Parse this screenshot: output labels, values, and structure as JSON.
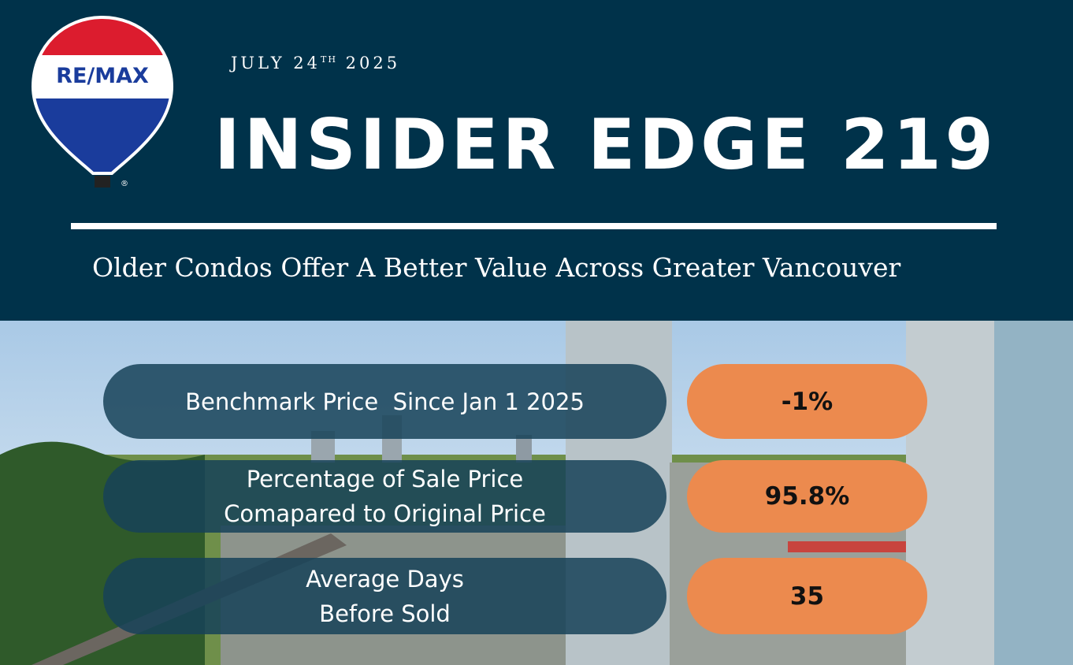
{
  "logo": {
    "text": "RE/MAX",
    "mark": "®"
  },
  "header": {
    "date": {
      "month_day": "JULY 24",
      "suffix": "TH",
      "year": "2025"
    },
    "title": "INSIDER EDGE 219",
    "subtitle": "Older Condos Offer A Better Value Across Greater Vancouver"
  },
  "stats": [
    {
      "label": [
        "Benchmark Price  Since Jan 1 2025"
      ],
      "value": "-1%"
    },
    {
      "label": [
        "Percentage of Sale Price",
        "Comapared to Original Price"
      ],
      "value": "95.8%"
    },
    {
      "label": [
        "Average Days",
        "Before Sold"
      ],
      "value": "35"
    }
  ]
}
